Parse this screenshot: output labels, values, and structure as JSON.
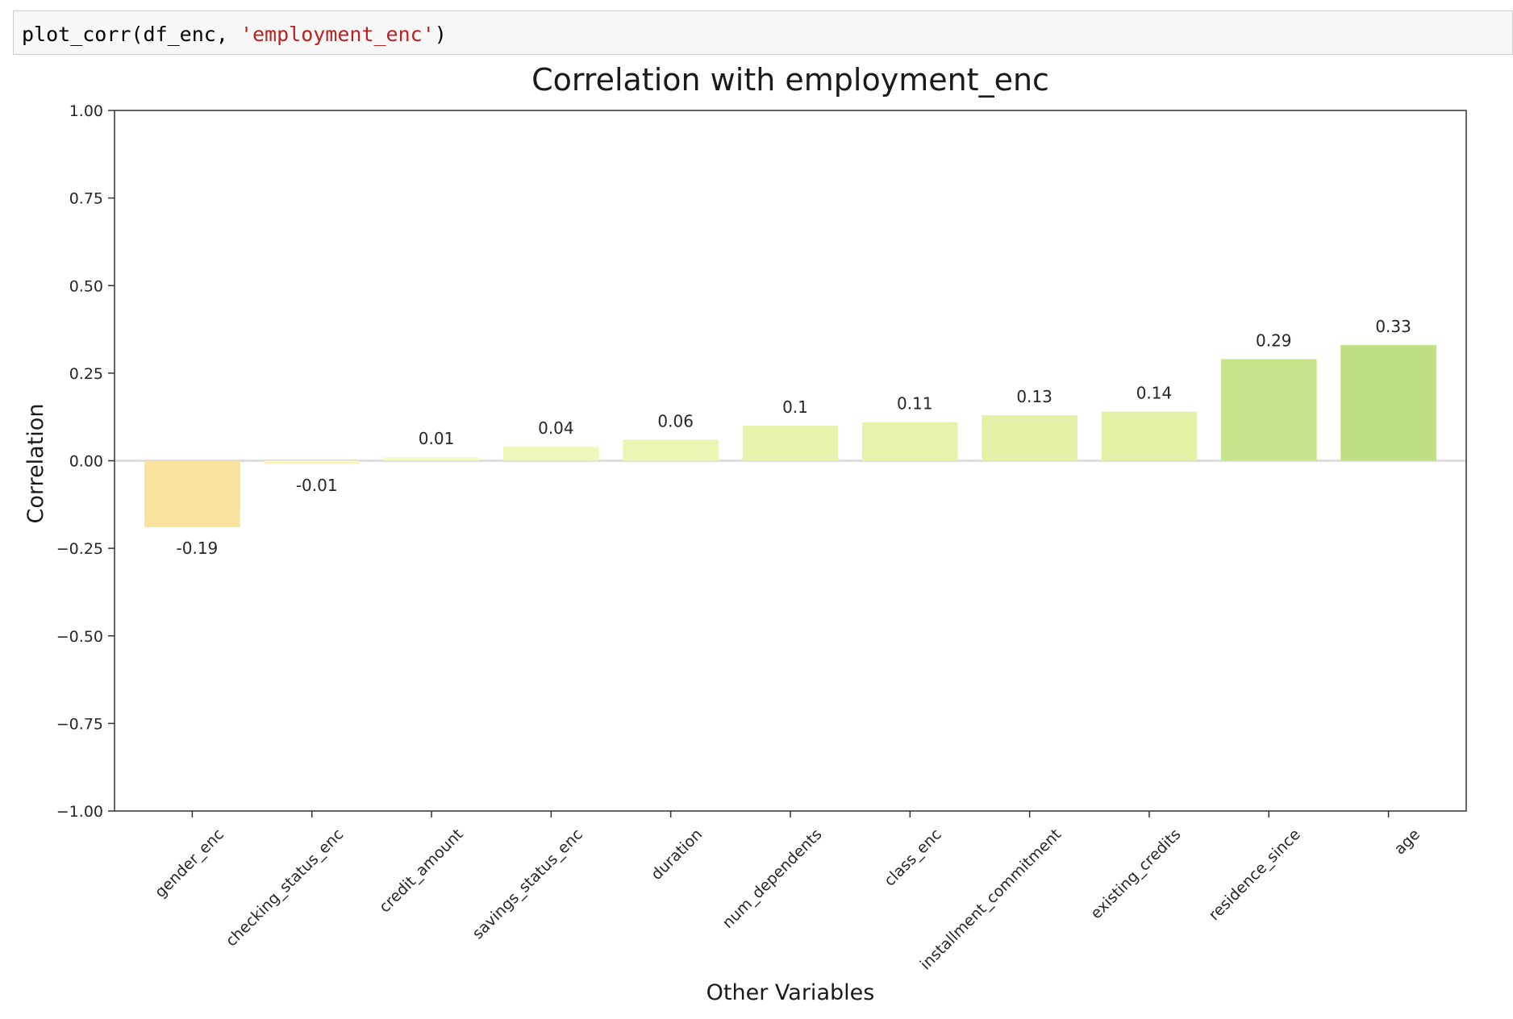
{
  "code_cell": {
    "prefix": "plot_corr(df_enc, ",
    "string_arg": "'employment_enc'",
    "suffix": ")"
  },
  "chart_data": {
    "type": "bar",
    "title": "Correlation with employment_enc",
    "xlabel": "Other Variables",
    "ylabel": "Correlation",
    "ylim": [
      -1.0,
      1.0
    ],
    "yticks": [
      "1.00",
      "0.75",
      "0.50",
      "0.25",
      "0.00",
      "−0.25",
      "−0.50",
      "−0.75",
      "−1.00"
    ],
    "ytick_values": [
      1.0,
      0.75,
      0.5,
      0.25,
      0.0,
      -0.25,
      -0.5,
      -0.75,
      -1.0
    ],
    "categories": [
      "gender_enc",
      "checking_status_enc",
      "credit_amount",
      "savings_status_enc",
      "duration",
      "num_dependents",
      "class_enc",
      "installment_commitment",
      "existing_credits",
      "residence_since",
      "age"
    ],
    "values": [
      -0.19,
      -0.01,
      0.01,
      0.04,
      0.06,
      0.1,
      0.11,
      0.13,
      0.14,
      0.29,
      0.33
    ],
    "data_labels": [
      "-0.19",
      "-0.01",
      "0.01",
      "0.04",
      "0.06",
      "0.1",
      "0.11",
      "0.13",
      "0.14",
      "0.29",
      "0.33"
    ],
    "colors": [
      "#f8e29d",
      "#f8f6c0",
      "#f5f8bf",
      "#f1f7bb",
      "#edf5b5",
      "#e8f3ad",
      "#e7f3ab",
      "#e4f2a8",
      "#e1f1a6",
      "#c7e38c",
      "#bfdf84"
    ],
    "zero_line_color": "#dddddd",
    "grid": false,
    "legend": "none"
  }
}
